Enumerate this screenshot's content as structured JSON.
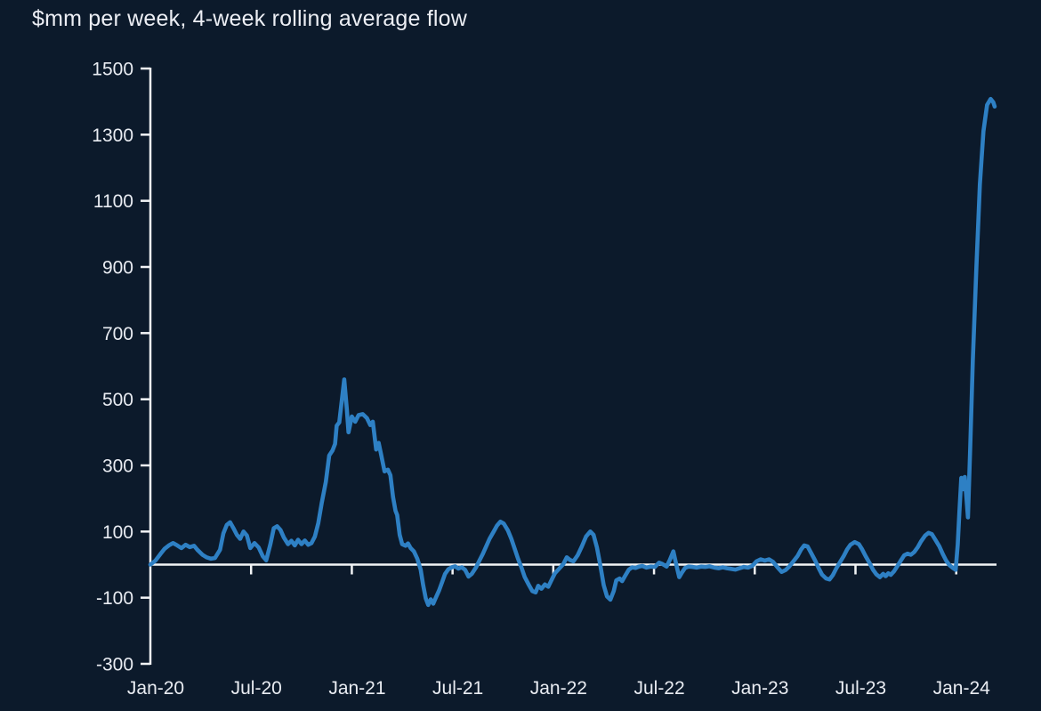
{
  "chart_data": {
    "type": "line",
    "title": "$mm per week, 4-week rolling average flow",
    "xlabel": "",
    "ylabel": "",
    "x_unit": "months since Jan-2020",
    "y_unit": "$mm per week",
    "xlim": [
      0,
      50.4
    ],
    "ylim": [
      -300,
      1500
    ],
    "grid": false,
    "zero_line": true,
    "legend": "none",
    "colors": {
      "background": "#0c1a2b",
      "line": "#2e80c4",
      "axis": "#f2f4f6",
      "text": "#e9ecf2"
    },
    "x_axis": {
      "ticks": [
        {
          "m": 0,
          "label": "Jan-20"
        },
        {
          "m": 6,
          "label": "Jul-20"
        },
        {
          "m": 12,
          "label": "Jan-21"
        },
        {
          "m": 18,
          "label": "Jul-21"
        },
        {
          "m": 24,
          "label": "Jan-22"
        },
        {
          "m": 30,
          "label": "Jul-22"
        },
        {
          "m": 36,
          "label": "Jan-23"
        },
        {
          "m": 42,
          "label": "Jul-23"
        },
        {
          "m": 48,
          "label": "Jan-24"
        }
      ]
    },
    "y_axis": {
      "ticks": [
        1500,
        1300,
        1100,
        900,
        700,
        500,
        300,
        100,
        -100,
        -300
      ]
    },
    "series": [
      {
        "name": "4-week rolling average flow",
        "points": [
          [
            0,
            0
          ],
          [
            0.3,
            12
          ],
          [
            0.6,
            32
          ],
          [
            0.85,
            48
          ],
          [
            1.1,
            58
          ],
          [
            1.35,
            65
          ],
          [
            1.6,
            58
          ],
          [
            1.85,
            50
          ],
          [
            2.1,
            60
          ],
          [
            2.35,
            53
          ],
          [
            2.6,
            57
          ],
          [
            2.8,
            45
          ],
          [
            3.1,
            30
          ],
          [
            3.35,
            22
          ],
          [
            3.6,
            18
          ],
          [
            3.85,
            20
          ],
          [
            4.15,
            45
          ],
          [
            4.35,
            95
          ],
          [
            4.55,
            120
          ],
          [
            4.75,
            128
          ],
          [
            4.95,
            110
          ],
          [
            5.15,
            90
          ],
          [
            5.35,
            78
          ],
          [
            5.55,
            100
          ],
          [
            5.75,
            88
          ],
          [
            5.95,
            50
          ],
          [
            6.2,
            65
          ],
          [
            6.45,
            52
          ],
          [
            6.7,
            25
          ],
          [
            6.9,
            13
          ],
          [
            7.15,
            62
          ],
          [
            7.35,
            110
          ],
          [
            7.55,
            116
          ],
          [
            7.75,
            105
          ],
          [
            7.95,
            82
          ],
          [
            8.2,
            62
          ],
          [
            8.4,
            72
          ],
          [
            8.6,
            58
          ],
          [
            8.8,
            75
          ],
          [
            9.0,
            62
          ],
          [
            9.2,
            73
          ],
          [
            9.4,
            60
          ],
          [
            9.6,
            65
          ],
          [
            9.8,
            85
          ],
          [
            10.0,
            125
          ],
          [
            10.2,
            185
          ],
          [
            10.45,
            250
          ],
          [
            10.65,
            330
          ],
          [
            10.85,
            345
          ],
          [
            11.0,
            365
          ],
          [
            11.1,
            420
          ],
          [
            11.25,
            430
          ],
          [
            11.4,
            495
          ],
          [
            11.55,
            560
          ],
          [
            11.7,
            470
          ],
          [
            11.8,
            400
          ],
          [
            12.0,
            448
          ],
          [
            12.2,
            432
          ],
          [
            12.4,
            452
          ],
          [
            12.65,
            455
          ],
          [
            12.9,
            443
          ],
          [
            13.1,
            422
          ],
          [
            13.25,
            432
          ],
          [
            13.45,
            348
          ],
          [
            13.6,
            368
          ],
          [
            13.75,
            332
          ],
          [
            13.95,
            282
          ],
          [
            14.15,
            287
          ],
          [
            14.3,
            270
          ],
          [
            14.45,
            205
          ],
          [
            14.6,
            163
          ],
          [
            14.7,
            150
          ],
          [
            14.85,
            90
          ],
          [
            15.0,
            62
          ],
          [
            15.2,
            57
          ],
          [
            15.35,
            64
          ],
          [
            15.5,
            50
          ],
          [
            15.7,
            40
          ],
          [
            15.9,
            18
          ],
          [
            16.1,
            -15
          ],
          [
            16.25,
            -62
          ],
          [
            16.4,
            -102
          ],
          [
            16.55,
            -122
          ],
          [
            16.7,
            -105
          ],
          [
            16.85,
            -118
          ],
          [
            17.0,
            -100
          ],
          [
            17.2,
            -78
          ],
          [
            17.4,
            -50
          ],
          [
            17.55,
            -28
          ],
          [
            17.75,
            -14
          ],
          [
            17.95,
            -8
          ],
          [
            18.15,
            -5
          ],
          [
            18.35,
            -12
          ],
          [
            18.55,
            -8
          ],
          [
            18.75,
            -16
          ],
          [
            18.95,
            -36
          ],
          [
            19.15,
            -28
          ],
          [
            19.4,
            -8
          ],
          [
            19.6,
            12
          ],
          [
            19.8,
            32
          ],
          [
            20.0,
            55
          ],
          [
            20.2,
            78
          ],
          [
            20.45,
            100
          ],
          [
            20.65,
            118
          ],
          [
            20.85,
            130
          ],
          [
            21.05,
            124
          ],
          [
            21.3,
            103
          ],
          [
            21.5,
            78
          ],
          [
            21.7,
            48
          ],
          [
            21.9,
            18
          ],
          [
            22.1,
            -8
          ],
          [
            22.3,
            -38
          ],
          [
            22.55,
            -62
          ],
          [
            22.75,
            -80
          ],
          [
            22.95,
            -84
          ],
          [
            23.1,
            -64
          ],
          [
            23.3,
            -73
          ],
          [
            23.5,
            -60
          ],
          [
            23.7,
            -67
          ],
          [
            23.9,
            -46
          ],
          [
            24.1,
            -26
          ],
          [
            24.35,
            -12
          ],
          [
            24.6,
            2
          ],
          [
            24.8,
            22
          ],
          [
            25.0,
            14
          ],
          [
            25.2,
            10
          ],
          [
            25.45,
            28
          ],
          [
            25.7,
            55
          ],
          [
            25.95,
            85
          ],
          [
            26.2,
            100
          ],
          [
            26.4,
            90
          ],
          [
            26.6,
            52
          ],
          [
            26.8,
            -2
          ],
          [
            27.0,
            -62
          ],
          [
            27.2,
            -96
          ],
          [
            27.4,
            -106
          ],
          [
            27.6,
            -80
          ],
          [
            27.75,
            -48
          ],
          [
            27.95,
            -42
          ],
          [
            28.1,
            -50
          ],
          [
            28.3,
            -32
          ],
          [
            28.5,
            -15
          ],
          [
            28.7,
            -8
          ],
          [
            28.9,
            -10
          ],
          [
            29.1,
            -6
          ],
          [
            29.3,
            -4
          ],
          [
            29.55,
            -9
          ],
          [
            29.8,
            -6
          ],
          [
            30.05,
            -7
          ],
          [
            30.3,
            6
          ],
          [
            30.5,
            2
          ],
          [
            30.75,
            -6
          ],
          [
            30.95,
            15
          ],
          [
            31.15,
            40
          ],
          [
            31.35,
            -5
          ],
          [
            31.5,
            -38
          ],
          [
            31.65,
            -25
          ],
          [
            31.85,
            -10
          ],
          [
            32.05,
            -6
          ],
          [
            32.3,
            -7
          ],
          [
            32.55,
            -9
          ],
          [
            32.8,
            -6
          ],
          [
            33.05,
            -7
          ],
          [
            33.3,
            -5
          ],
          [
            33.6,
            -9
          ],
          [
            33.85,
            -11
          ],
          [
            34.1,
            -8
          ],
          [
            34.35,
            -11
          ],
          [
            34.6,
            -13
          ],
          [
            34.85,
            -15
          ],
          [
            35.1,
            -11
          ],
          [
            35.35,
            -7
          ],
          [
            35.6,
            -9
          ],
          [
            35.85,
            -4
          ],
          [
            36.1,
            10
          ],
          [
            36.35,
            16
          ],
          [
            36.6,
            12
          ],
          [
            36.85,
            16
          ],
          [
            37.1,
            8
          ],
          [
            37.35,
            -8
          ],
          [
            37.6,
            -22
          ],
          [
            37.85,
            -16
          ],
          [
            38.05,
            -6
          ],
          [
            38.3,
            10
          ],
          [
            38.55,
            26
          ],
          [
            38.75,
            45
          ],
          [
            38.95,
            58
          ],
          [
            39.15,
            55
          ],
          [
            39.35,
            36
          ],
          [
            39.6,
            12
          ],
          [
            39.8,
            -10
          ],
          [
            40.0,
            -30
          ],
          [
            40.25,
            -42
          ],
          [
            40.45,
            -45
          ],
          [
            40.65,
            -32
          ],
          [
            40.85,
            -12
          ],
          [
            41.05,
            5
          ],
          [
            41.3,
            26
          ],
          [
            41.5,
            46
          ],
          [
            41.7,
            60
          ],
          [
            41.95,
            68
          ],
          [
            42.2,
            62
          ],
          [
            42.4,
            46
          ],
          [
            42.6,
            26
          ],
          [
            42.85,
            4
          ],
          [
            43.05,
            -16
          ],
          [
            43.25,
            -30
          ],
          [
            43.45,
            -38
          ],
          [
            43.65,
            -28
          ],
          [
            43.8,
            -35
          ],
          [
            43.95,
            -26
          ],
          [
            44.1,
            -31
          ],
          [
            44.3,
            -20
          ],
          [
            44.5,
            -4
          ],
          [
            44.7,
            12
          ],
          [
            44.9,
            28
          ],
          [
            45.1,
            33
          ],
          [
            45.3,
            30
          ],
          [
            45.5,
            38
          ],
          [
            45.7,
            52
          ],
          [
            45.9,
            70
          ],
          [
            46.15,
            88
          ],
          [
            46.35,
            96
          ],
          [
            46.55,
            92
          ],
          [
            46.75,
            76
          ],
          [
            47.0,
            55
          ],
          [
            47.2,
            32
          ],
          [
            47.4,
            12
          ],
          [
            47.6,
            -2
          ],
          [
            47.8,
            -10
          ],
          [
            47.97,
            -16
          ],
          [
            48.09,
            60
          ],
          [
            48.19,
            160
          ],
          [
            48.3,
            262
          ],
          [
            48.41,
            228
          ],
          [
            48.51,
            265
          ],
          [
            48.62,
            195
          ],
          [
            48.7,
            143
          ],
          [
            48.83,
            350
          ],
          [
            48.99,
            620
          ],
          [
            49.2,
            900
          ],
          [
            49.41,
            1150
          ],
          [
            49.62,
            1310
          ],
          [
            49.84,
            1390
          ],
          [
            50.05,
            1408
          ],
          [
            50.21,
            1398
          ],
          [
            50.29,
            1385
          ]
        ]
      }
    ]
  }
}
